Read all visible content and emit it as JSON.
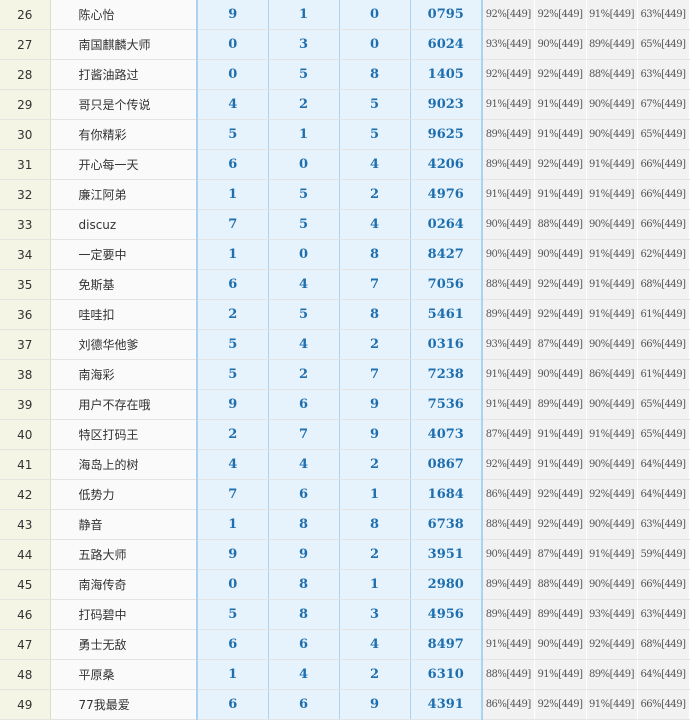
{
  "rows": [
    [
      26,
      "陈心怡",
      9,
      1,
      0,
      "0795",
      "92%[449]",
      "92%[449]",
      "91%[449]",
      "63%[449]"
    ],
    [
      27,
      "南国麒麟大师",
      0,
      3,
      0,
      "6024",
      "93%[449]",
      "90%[449]",
      "89%[449]",
      "65%[449]"
    ],
    [
      28,
      "打酱油路过",
      0,
      5,
      8,
      "1405",
      "92%[449]",
      "92%[449]",
      "88%[449]",
      "63%[449]"
    ],
    [
      29,
      "哥只是个传说",
      4,
      2,
      5,
      "9023",
      "91%[449]",
      "91%[449]",
      "90%[449]",
      "67%[449]"
    ],
    [
      30,
      "有你精彩",
      5,
      1,
      5,
      "9625",
      "89%[449]",
      "91%[449]",
      "90%[449]",
      "65%[449]"
    ],
    [
      31,
      "开心每一天",
      6,
      0,
      4,
      "4206",
      "89%[449]",
      "92%[449]",
      "91%[449]",
      "66%[449]"
    ],
    [
      32,
      "廉江阿弟",
      1,
      5,
      2,
      "4976",
      "91%[449]",
      "91%[449]",
      "91%[449]",
      "66%[449]"
    ],
    [
      33,
      "discuz",
      7,
      5,
      4,
      "0264",
      "90%[449]",
      "88%[449]",
      "90%[449]",
      "66%[449]"
    ],
    [
      34,
      "一定要中",
      1,
      0,
      8,
      "8427",
      "90%[449]",
      "90%[449]",
      "91%[449]",
      "62%[449]"
    ],
    [
      35,
      "免斯基",
      6,
      4,
      7,
      "7056",
      "88%[449]",
      "92%[449]",
      "91%[449]",
      "68%[449]"
    ],
    [
      36,
      "哇哇扣",
      2,
      5,
      8,
      "5461",
      "89%[449]",
      "92%[449]",
      "91%[449]",
      "61%[449]"
    ],
    [
      37,
      "刘德华他爹",
      5,
      4,
      2,
      "0316",
      "93%[449]",
      "87%[449]",
      "90%[449]",
      "66%[449]"
    ],
    [
      38,
      "南海彩",
      5,
      2,
      7,
      "7238",
      "91%[449]",
      "90%[449]",
      "86%[449]",
      "61%[449]"
    ],
    [
      39,
      "用户不存在哦",
      9,
      6,
      9,
      "7536",
      "91%[449]",
      "89%[449]",
      "90%[449]",
      "65%[449]"
    ],
    [
      40,
      "特区打码王",
      2,
      7,
      9,
      "4073",
      "87%[449]",
      "91%[449]",
      "91%[449]",
      "65%[449]"
    ],
    [
      41,
      "海岛上的树",
      4,
      4,
      2,
      "0867",
      "92%[449]",
      "91%[449]",
      "90%[449]",
      "64%[449]"
    ],
    [
      42,
      "低势力",
      7,
      6,
      1,
      "1684",
      "86%[449]",
      "92%[449]",
      "92%[449]",
      "64%[449]"
    ],
    [
      43,
      "静音",
      1,
      8,
      8,
      "6738",
      "88%[449]",
      "92%[449]",
      "90%[449]",
      "63%[449]"
    ],
    [
      44,
      "五路大师",
      9,
      9,
      2,
      "3951",
      "90%[449]",
      "87%[449]",
      "91%[449]",
      "59%[449]"
    ],
    [
      45,
      "南海传奇",
      0,
      8,
      1,
      "2980",
      "89%[449]",
      "88%[449]",
      "90%[449]",
      "66%[449]"
    ],
    [
      46,
      "打码碧中",
      5,
      8,
      3,
      "4956",
      "89%[449]",
      "89%[449]",
      "93%[449]",
      "63%[449]"
    ],
    [
      47,
      "勇士无敌",
      6,
      6,
      4,
      "8497",
      "91%[449]",
      "90%[449]",
      "92%[449]",
      "68%[449]"
    ],
    [
      48,
      "平原桑",
      1,
      4,
      2,
      "6310",
      "88%[449]",
      "91%[449]",
      "89%[449]",
      "64%[449]"
    ],
    [
      49,
      "77我最爱",
      6,
      6,
      9,
      "4391",
      "86%[449]",
      "92%[449]",
      "91%[449]",
      "66%[449]"
    ]
  ]
}
